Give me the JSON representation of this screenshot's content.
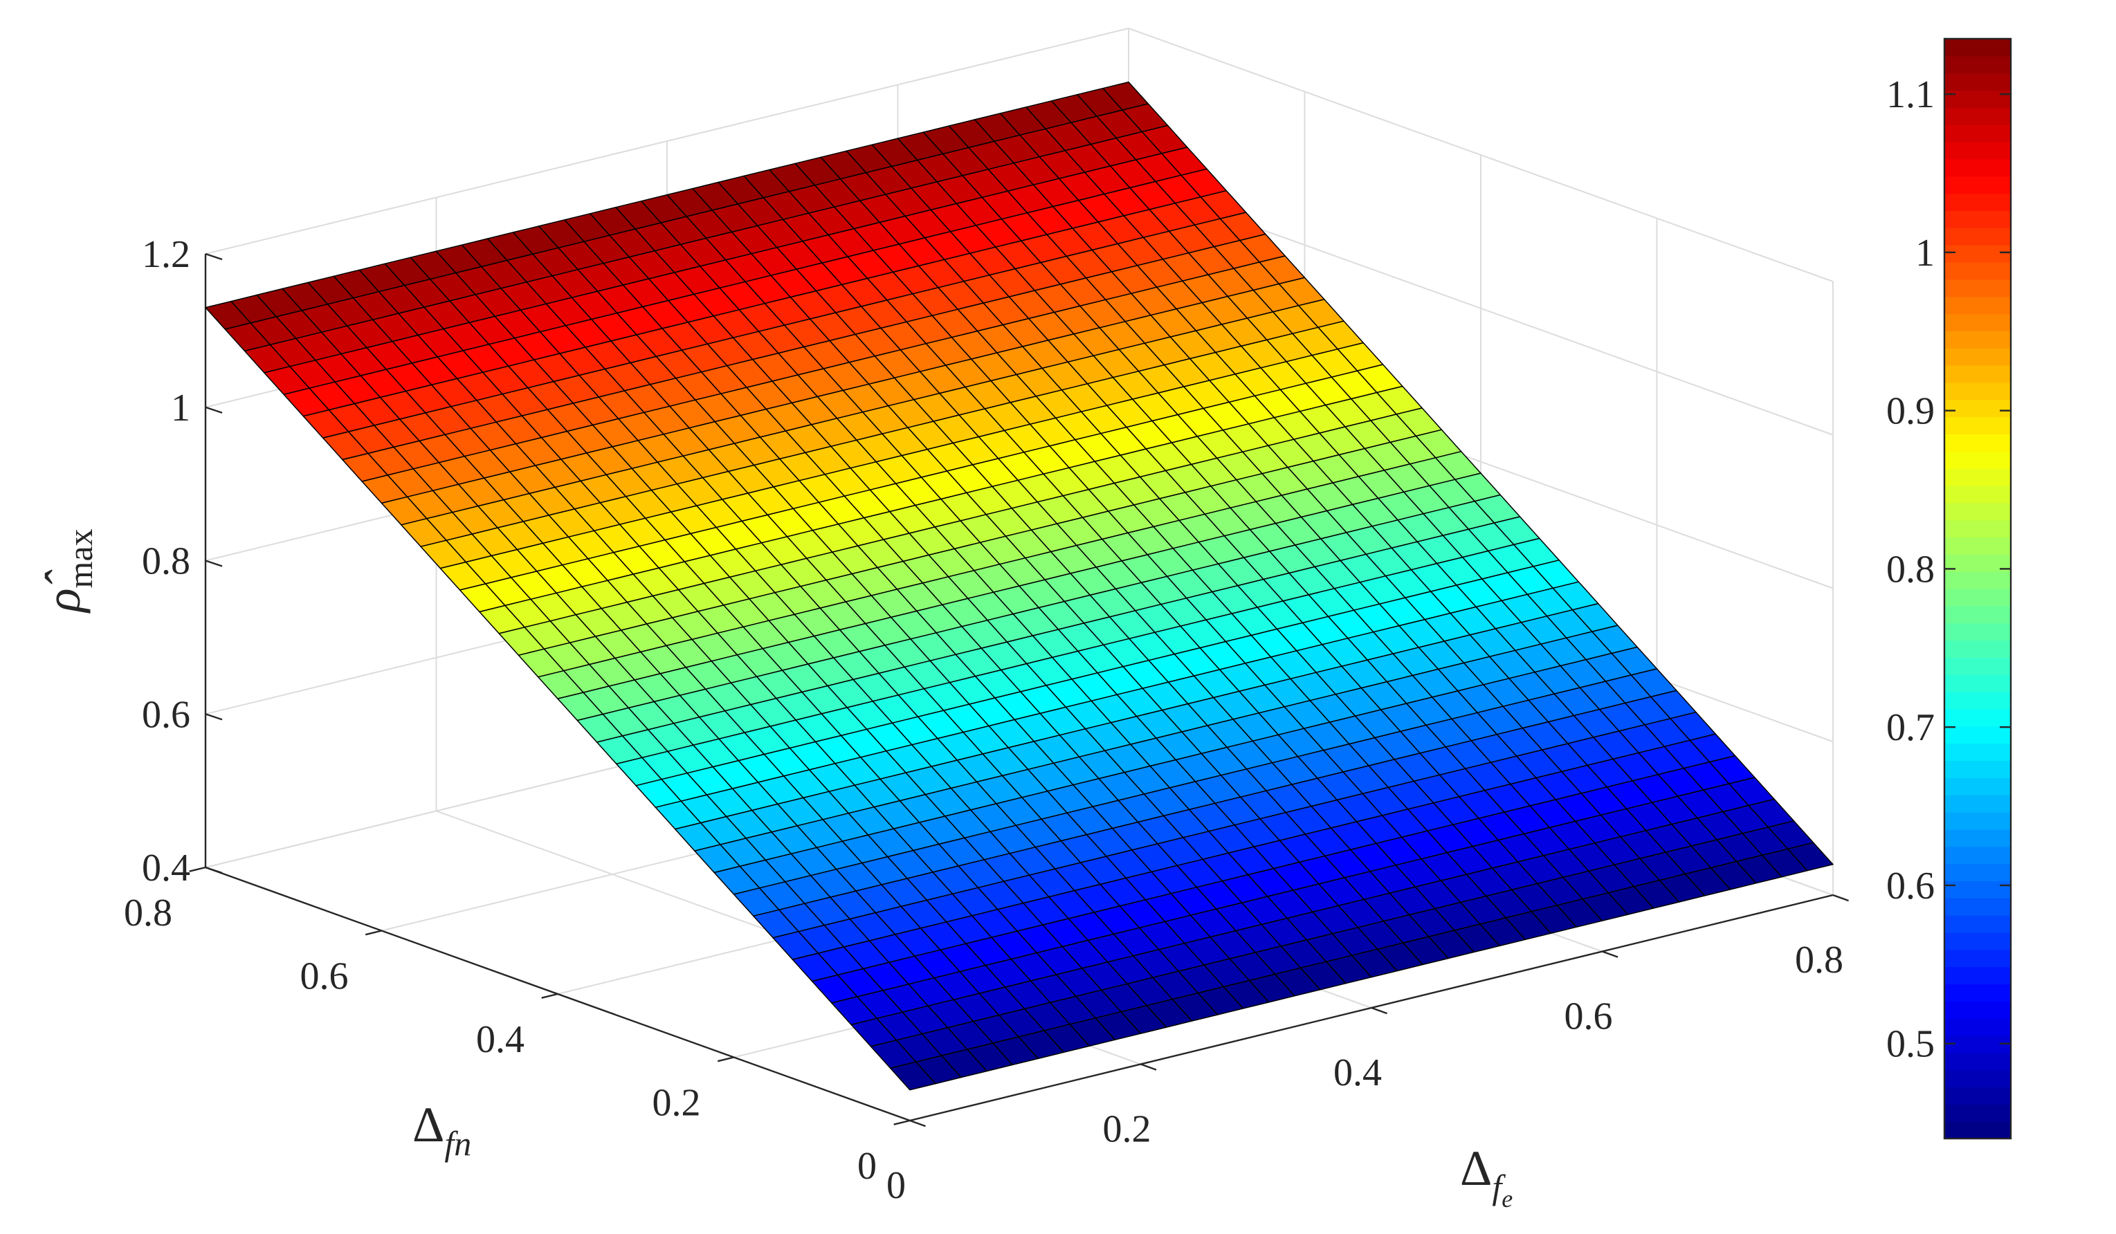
{
  "chart_data": {
    "type": "surface",
    "xlabel": {
      "base": "Δ",
      "sub": "f",
      "subsub": "e"
    },
    "ylabel": {
      "base": "Δ",
      "sub": "fn"
    },
    "zlabel": {
      "base": "ρ̂",
      "sub": "max"
    },
    "xlim": [
      0,
      0.8
    ],
    "ylim": [
      0,
      0.8
    ],
    "zlim": [
      0.4,
      1.2
    ],
    "x_ticks": [
      "0",
      "0.2",
      "0.4",
      "0.6",
      "0.8"
    ],
    "y_ticks": [
      "0",
      "0.2",
      "0.4",
      "0.6",
      "0.8"
    ],
    "z_ticks": [
      "0.4",
      "0.6",
      "0.8",
      "1",
      "1.2"
    ],
    "grid": true,
    "x_values": [
      0,
      0.8
    ],
    "y_values": [
      0,
      0.8
    ],
    "z_values": [
      [
        0.44,
        0.44
      ],
      [
        1.13,
        1.13
      ]
    ],
    "mesh_divisions": {
      "x": 36,
      "y": 36
    },
    "colormap": "jet",
    "colorbar": {
      "position": "right",
      "range": [
        0.44,
        1.135
      ],
      "ticks": [
        "0.5",
        "0.6",
        "0.7",
        "0.8",
        "0.9",
        "1",
        "1.1"
      ]
    }
  }
}
